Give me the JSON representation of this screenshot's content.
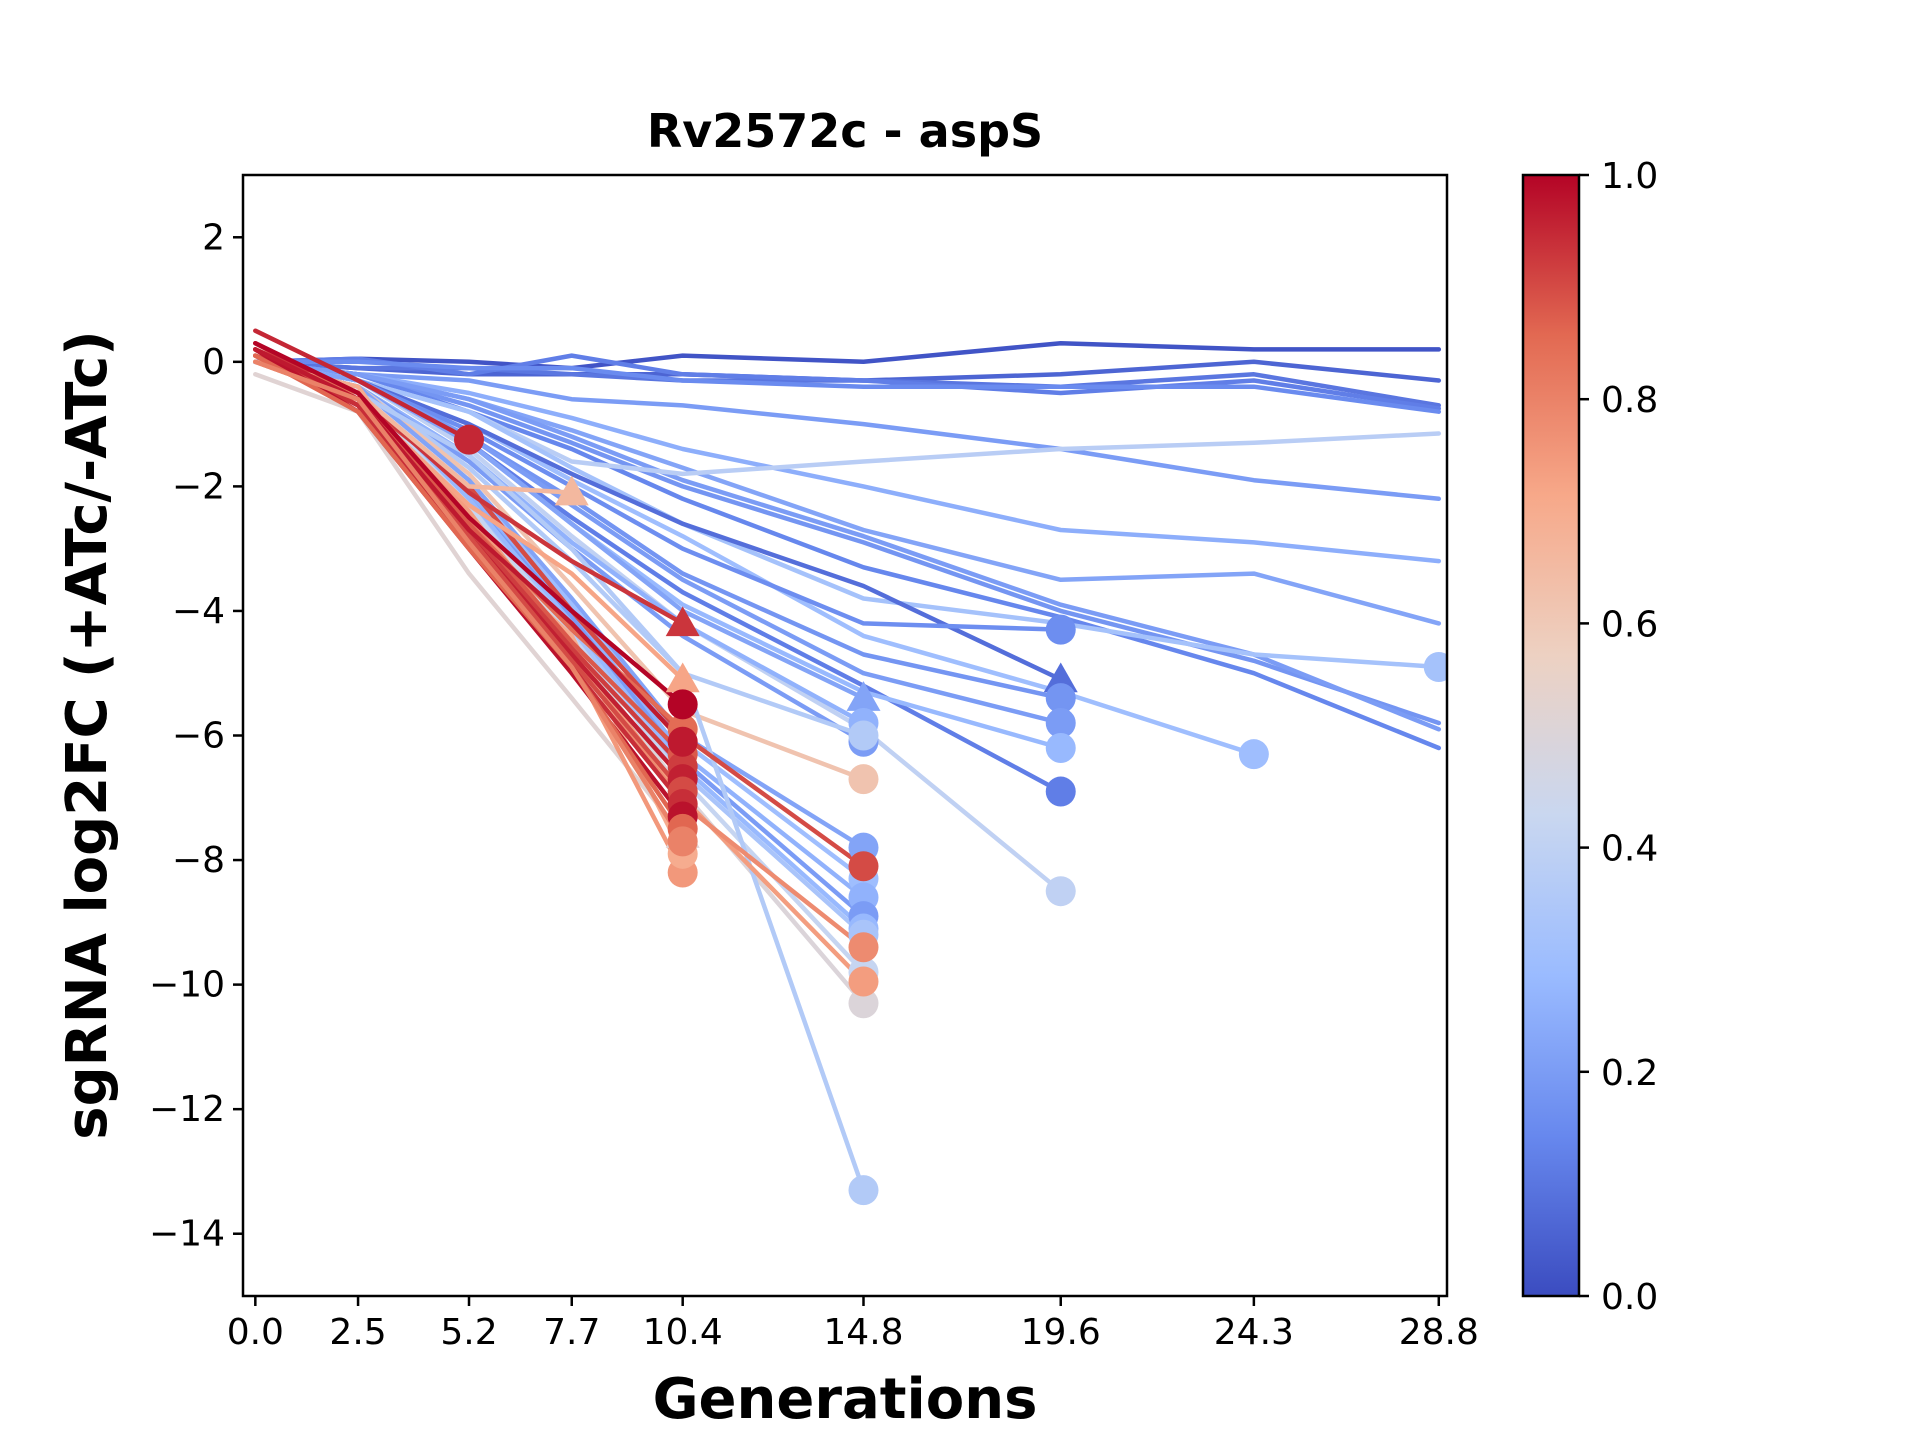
{
  "chart_data": {
    "type": "line",
    "title": "Rv2572c - aspS",
    "xlabel": "Generations",
    "ylabel": "sgRNA log2FC (+ATc/-ATc)",
    "x_ticks": [
      "0.0",
      "2.5",
      "5.2",
      "7.7",
      "10.4",
      "14.8",
      "19.6",
      "24.3",
      "28.8"
    ],
    "y_ticks": [
      "2",
      "0",
      "−2",
      "−4",
      "−6",
      "−8",
      "−10",
      "−12",
      "−14"
    ],
    "xlim": [
      -0.3,
      29.0
    ],
    "ylim": [
      -15,
      3
    ],
    "grid": false,
    "legend": "none",
    "colorbar": {
      "colormap": "coolwarm",
      "ticks": [
        "0.0",
        "0.2",
        "0.4",
        "0.6",
        "0.8",
        "1.0"
      ],
      "range": [
        0,
        1
      ],
      "colors": [
        "#3b4cc0",
        "#6788ee",
        "#9abbff",
        "#c9d7f0",
        "#edd1c2",
        "#f7a889",
        "#e26952",
        "#b40426"
      ]
    },
    "series": [
      {
        "c": 0.02,
        "x": [
          0,
          2.5,
          5.2,
          7.7,
          10.4,
          14.8,
          19.6,
          24.3,
          28.8
        ],
        "y": [
          0.0,
          0.05,
          0.0,
          -0.1,
          0.1,
          0.0,
          0.3,
          0.2,
          0.2
        ],
        "marker": "none"
      },
      {
        "c": 0.06,
        "x": [
          0,
          2.5,
          5.2,
          7.7,
          10.4,
          14.8,
          19.6,
          24.3,
          28.8
        ],
        "y": [
          0.0,
          -0.1,
          -0.2,
          -0.2,
          -0.2,
          -0.3,
          -0.2,
          0.0,
          -0.3
        ],
        "marker": "none"
      },
      {
        "c": 0.1,
        "x": [
          0,
          2.5,
          5.2,
          7.7,
          10.4,
          14.8,
          19.6,
          24.3,
          28.8
        ],
        "y": [
          0.0,
          -0.1,
          -0.1,
          -0.2,
          -0.3,
          -0.3,
          -0.4,
          -0.2,
          -0.7
        ],
        "marker": "none"
      },
      {
        "c": 0.12,
        "x": [
          0,
          2.5,
          5.2,
          7.7,
          10.4,
          14.8,
          19.6,
          24.3,
          28.8
        ],
        "y": [
          0.0,
          0.05,
          -0.2,
          0.1,
          -0.2,
          -0.3,
          -0.5,
          -0.3,
          -0.75
        ],
        "marker": "none"
      },
      {
        "c": 0.15,
        "x": [
          0,
          2.5,
          5.2,
          7.7,
          10.4,
          14.8,
          19.6,
          24.3,
          28.8
        ],
        "y": [
          0.0,
          0.0,
          -0.1,
          -0.1,
          -0.3,
          -0.4,
          -0.4,
          -0.4,
          -0.8
        ],
        "marker": "none"
      },
      {
        "c": 0.2,
        "x": [
          0,
          2.5,
          5.2,
          7.7,
          10.4,
          14.8,
          19.6,
          24.3,
          28.8
        ],
        "y": [
          0.0,
          -0.2,
          -0.3,
          -0.6,
          -0.7,
          -1.0,
          -1.4,
          -1.9,
          -2.2
        ],
        "marker": "none"
      },
      {
        "c": 0.25,
        "x": [
          0,
          2.5,
          5.2,
          7.7,
          10.4,
          14.8,
          19.6,
          24.3,
          28.8
        ],
        "y": [
          0.0,
          -0.2,
          -0.5,
          -0.9,
          -1.4,
          -2.0,
          -2.7,
          -2.9,
          -3.2
        ],
        "marker": "none"
      },
      {
        "c": 0.22,
        "x": [
          0,
          2.5,
          5.2,
          7.7,
          10.4,
          14.8,
          19.6,
          24.3,
          28.8
        ],
        "y": [
          0.0,
          -0.2,
          -0.6,
          -1.1,
          -1.7,
          -2.7,
          -3.5,
          -3.4,
          -4.2
        ],
        "marker": "none"
      },
      {
        "c": 0.18,
        "x": [
          0,
          2.5,
          5.2,
          7.7,
          10.4,
          14.8,
          19.6,
          24.3,
          28.8
        ],
        "y": [
          0.0,
          -0.2,
          -0.7,
          -1.3,
          -2.0,
          -2.9,
          -4.0,
          -4.8,
          -5.8
        ],
        "marker": "none"
      },
      {
        "c": 0.14,
        "x": [
          0,
          2.5,
          5.2,
          7.7,
          10.4,
          14.8,
          19.6,
          24.3,
          28.8
        ],
        "y": [
          0.0,
          -0.2,
          -0.8,
          -1.4,
          -2.2,
          -3.3,
          -4.1,
          -5.0,
          -6.2
        ],
        "marker": "none"
      },
      {
        "c": 0.2,
        "x": [
          0,
          2.5,
          5.2,
          7.7,
          10.4,
          14.8,
          19.6,
          24.3,
          28.8
        ],
        "y": [
          0.0,
          -0.2,
          -0.6,
          -1.2,
          -1.9,
          -2.8,
          -3.9,
          -4.7,
          -5.9
        ],
        "marker": "none"
      },
      {
        "c": 0.38,
        "x": [
          0,
          2.5,
          5.2,
          7.7,
          10.4,
          14.8,
          19.6,
          24.3,
          28.8
        ],
        "y": [
          0.0,
          -0.3,
          -0.8,
          -1.6,
          -1.8,
          -1.6,
          -1.4,
          -1.3,
          -1.15
        ],
        "marker": "none"
      },
      {
        "c": 0.32,
        "x": [
          0,
          2.5,
          5.2,
          7.7,
          10.4,
          14.8,
          19.6,
          24.3,
          28.8
        ],
        "y": [
          0.0,
          -0.3,
          -0.8,
          -1.7,
          -2.6,
          -3.8,
          -4.2,
          -4.7,
          -4.9
        ],
        "marker": "circle"
      },
      {
        "c": 0.3,
        "x": [
          0,
          2.5,
          5.2,
          7.7,
          10.4,
          14.8,
          19.6,
          24.3
        ],
        "y": [
          0.0,
          -0.3,
          -1.0,
          -1.9,
          -2.8,
          -4.4,
          -5.3,
          -6.3
        ],
        "marker": "circle"
      },
      {
        "c": 0.08,
        "x": [
          0,
          2.5,
          5.2,
          7.7,
          10.4,
          14.8,
          19.6
        ],
        "y": [
          0.0,
          -0.3,
          -1.0,
          -1.8,
          -2.6,
          -3.6,
          -5.1
        ],
        "marker": "triangle"
      },
      {
        "c": 0.16,
        "x": [
          0,
          2.5,
          5.2,
          7.7,
          10.4,
          14.8,
          19.6
        ],
        "y": [
          0.0,
          -0.3,
          -1.1,
          -2.0,
          -3.0,
          -4.2,
          -4.3
        ],
        "marker": "circle"
      },
      {
        "c": 0.18,
        "x": [
          0,
          2.5,
          5.2,
          7.7,
          10.4,
          14.8,
          19.6
        ],
        "y": [
          0.0,
          -0.3,
          -1.2,
          -2.2,
          -3.4,
          -4.7,
          -5.4
        ],
        "marker": "circle"
      },
      {
        "c": 0.2,
        "x": [
          0,
          2.5,
          5.2,
          7.7,
          10.4,
          14.8,
          19.6
        ],
        "y": [
          0.0,
          -0.3,
          -1.2,
          -2.3,
          -3.5,
          -5.0,
          -5.8
        ],
        "marker": "circle"
      },
      {
        "c": 0.12,
        "x": [
          0,
          2.5,
          5.2,
          7.7,
          10.4,
          14.8,
          19.6
        ],
        "y": [
          0.0,
          -0.3,
          -1.3,
          -2.5,
          -3.7,
          -5.2,
          -6.9
        ],
        "marker": "circle"
      },
      {
        "c": 0.28,
        "x": [
          0,
          2.5,
          5.2,
          7.7,
          10.4,
          14.8,
          19.6
        ],
        "y": [
          0.0,
          -0.3,
          -1.3,
          -2.6,
          -3.9,
          -5.3,
          -6.2
        ],
        "marker": "circle"
      },
      {
        "c": 0.4,
        "x": [
          0,
          2.5,
          5.2,
          7.7,
          10.4,
          14.8,
          19.6
        ],
        "y": [
          0.0,
          -0.3,
          -1.4,
          -2.8,
          -4.2,
          -5.9,
          -8.5
        ],
        "marker": "circle"
      },
      {
        "c": 0.22,
        "x": [
          0,
          2.5,
          5.2,
          7.7,
          10.4,
          14.8
        ],
        "y": [
          0.0,
          -0.3,
          -1.3,
          -2.6,
          -4.0,
          -5.4
        ],
        "marker": "triangle"
      },
      {
        "c": 0.26,
        "x": [
          0,
          2.5,
          5.2,
          7.7,
          10.4,
          14.8
        ],
        "y": [
          0.0,
          -0.4,
          -1.5,
          -2.9,
          -4.2,
          -5.8
        ],
        "marker": "circle"
      },
      {
        "c": 0.2,
        "x": [
          0,
          2.5,
          5.2,
          7.7,
          10.4,
          14.8
        ],
        "y": [
          0.0,
          -0.4,
          -1.6,
          -3.0,
          -4.4,
          -6.1
        ],
        "marker": "circle"
      },
      {
        "c": 0.36,
        "x": [
          0,
          2.5,
          5.2,
          7.7,
          10.4,
          14.8
        ],
        "y": [
          0.0,
          -0.4,
          -1.7,
          -3.2,
          -5.0,
          -6.0
        ],
        "marker": "circle"
      },
      {
        "c": 0.62,
        "x": [
          0,
          2.5,
          5.2,
          7.7,
          10.4,
          14.8
        ],
        "y": [
          0.0,
          -0.4,
          -1.8,
          -3.6,
          -5.6,
          -6.7
        ],
        "marker": "circle"
      },
      {
        "c": 0.22,
        "x": [
          0,
          2.5,
          5.2,
          7.7,
          10.4,
          14.8
        ],
        "y": [
          0.0,
          -0.4,
          -1.9,
          -3.8,
          -6.0,
          -7.8
        ],
        "marker": "circle"
      },
      {
        "c": 0.3,
        "x": [
          0,
          2.5,
          5.2,
          7.7,
          10.4,
          14.8
        ],
        "y": [
          0.0,
          -0.5,
          -2.0,
          -3.9,
          -6.1,
          -8.3
        ],
        "marker": "circle"
      },
      {
        "c": 0.26,
        "x": [
          0,
          2.5,
          5.2,
          7.7,
          10.4,
          14.8
        ],
        "y": [
          0.0,
          -0.5,
          -2.1,
          -4.0,
          -6.3,
          -8.6
        ],
        "marker": "circle"
      },
      {
        "c": 0.2,
        "x": [
          0,
          2.5,
          5.2,
          7.7,
          10.4,
          14.8
        ],
        "y": [
          0.0,
          -0.5,
          -2.2,
          -4.1,
          -6.4,
          -8.9
        ],
        "marker": "circle"
      },
      {
        "c": 0.28,
        "x": [
          0,
          2.5,
          5.2,
          7.7,
          10.4,
          14.8
        ],
        "y": [
          0.0,
          -0.5,
          -2.2,
          -4.2,
          -6.5,
          -9.1
        ],
        "marker": "circle"
      },
      {
        "c": 0.33,
        "x": [
          0,
          2.5,
          5.2,
          7.7,
          10.4,
          14.8
        ],
        "y": [
          0.0,
          -0.5,
          -2.3,
          -4.3,
          -6.6,
          -9.2
        ],
        "marker": "circle"
      },
      {
        "c": 0.42,
        "x": [
          0,
          2.5,
          5.2,
          7.7,
          10.4,
          14.8
        ],
        "y": [
          0.0,
          -0.5,
          -2.3,
          -4.4,
          -6.7,
          -9.8
        ],
        "marker": "circle"
      },
      {
        "c": 0.5,
        "x": [
          0,
          2.5,
          5.2,
          7.7,
          10.4,
          14.8
        ],
        "y": [
          0.0,
          -0.6,
          -2.4,
          -4.5,
          -6.9,
          -10.3
        ],
        "marker": "circle"
      },
      {
        "c": 0.36,
        "x": [
          0,
          2.5,
          5.2,
          7.7,
          10.4,
          14.8
        ],
        "y": [
          0.0,
          -0.5,
          -1.5,
          -3.0,
          -5.0,
          -13.3
        ],
        "marker": "circle"
      },
      {
        "c": 0.74,
        "x": [
          0,
          2.5,
          5.2,
          7.7,
          10.4,
          14.8
        ],
        "y": [
          0.0,
          -0.6,
          -2.4,
          -4.6,
          -7.0,
          -9.95
        ],
        "marker": "circle"
      },
      {
        "c": 0.78,
        "x": [
          0,
          2.5,
          5.2,
          7.7,
          10.4,
          14.8
        ],
        "y": [
          0.0,
          -0.6,
          -2.5,
          -4.7,
          -7.1,
          -9.4
        ],
        "marker": "circle"
      },
      {
        "c": 0.9,
        "x": [
          0,
          2.5,
          5.2,
          7.7,
          10.4,
          14.8
        ],
        "y": [
          0.3,
          -0.6,
          -2.0,
          -4.0,
          -6.0,
          -8.1
        ],
        "marker": "circle"
      },
      {
        "c": 0.95,
        "x": [
          0,
          2.5,
          5.2
        ],
        "y": [
          0.5,
          -0.3,
          -1.25
        ],
        "marker": "circle"
      },
      {
        "c": 0.93,
        "x": [
          0,
          2.5,
          5.2,
          7.7,
          10.4
        ],
        "y": [
          0.2,
          -0.5,
          -2.1,
          -3.2,
          -4.2
        ],
        "marker": "triangle"
      },
      {
        "c": 0.66,
        "x": [
          0,
          2.5,
          5.2,
          7.7
        ],
        "y": [
          0.0,
          -0.5,
          -2.0,
          -2.1
        ],
        "marker": "triangle"
      },
      {
        "c": 0.72,
        "x": [
          0,
          2.5,
          5.2,
          7.7,
          10.4
        ],
        "y": [
          0.1,
          -0.6,
          -2.3,
          -3.4,
          -5.1
        ],
        "marker": "triangle"
      },
      {
        "c": 0.52,
        "x": [
          0,
          2.5,
          5.2,
          7.7,
          10.4
        ],
        "y": [
          -0.2,
          -0.8,
          -3.4,
          -5.4,
          -7.6
        ],
        "marker": "triangle"
      },
      {
        "c": 0.75,
        "x": [
          0,
          2.5,
          5.2,
          7.7,
          10.4
        ],
        "y": [
          0.0,
          -0.6,
          -2.7,
          -4.8,
          -8.2
        ],
        "marker": "circle"
      },
      {
        "c": 0.7,
        "x": [
          0,
          2.5,
          5.2,
          7.7,
          10.4
        ],
        "y": [
          0.0,
          -0.4,
          -2.9,
          -4.4,
          -7.9
        ],
        "marker": "circle"
      },
      {
        "c": 0.85,
        "x": [
          0,
          2.5,
          5.2,
          7.7,
          10.4
        ],
        "y": [
          0.1,
          -0.5,
          -2.6,
          -4.3,
          -5.9
        ],
        "marker": "circle"
      },
      {
        "c": 0.88,
        "x": [
          0,
          2.5,
          5.2,
          7.7,
          10.4
        ],
        "y": [
          0.1,
          -0.6,
          -2.6,
          -4.5,
          -6.3
        ],
        "marker": "circle"
      },
      {
        "c": 0.92,
        "x": [
          0,
          2.5,
          5.2,
          7.7,
          10.4
        ],
        "y": [
          0.2,
          -0.6,
          -2.7,
          -4.6,
          -6.5
        ],
        "marker": "circle"
      },
      {
        "c": 0.96,
        "x": [
          0,
          2.5,
          5.2,
          7.7,
          10.4
        ],
        "y": [
          0.2,
          -0.7,
          -2.8,
          -4.7,
          -6.7
        ],
        "marker": "circle"
      },
      {
        "c": 0.9,
        "x": [
          0,
          2.5,
          5.2,
          7.7,
          10.4
        ],
        "y": [
          0.2,
          -0.7,
          -2.8,
          -4.8,
          -6.9
        ],
        "marker": "circle"
      },
      {
        "c": 0.94,
        "x": [
          0,
          2.5,
          5.2,
          7.7,
          10.4
        ],
        "y": [
          0.1,
          -0.7,
          -2.9,
          -4.9,
          -7.1
        ],
        "marker": "circle"
      },
      {
        "c": 0.98,
        "x": [
          0,
          2.5,
          5.2,
          7.7,
          10.4
        ],
        "y": [
          0.2,
          -0.8,
          -3.0,
          -5.0,
          -7.3
        ],
        "marker": "circle"
      },
      {
        "c": 0.86,
        "x": [
          0,
          2.5,
          5.2,
          7.7,
          10.4
        ],
        "y": [
          0.1,
          -0.8,
          -3.0,
          -4.9,
          -7.5
        ],
        "marker": "circle"
      },
      {
        "c": 1.0,
        "x": [
          0,
          2.5,
          5.2,
          7.7,
          10.4
        ],
        "y": [
          0.3,
          -0.5,
          -2.5,
          -4.0,
          -5.5
        ],
        "marker": "circle"
      },
      {
        "c": 0.97,
        "x": [
          0,
          2.5,
          5.2,
          7.7,
          10.4
        ],
        "y": [
          0.2,
          -0.6,
          -2.7,
          -4.2,
          -6.1
        ],
        "marker": "circle"
      },
      {
        "c": 0.8,
        "x": [
          0,
          2.5,
          5.2,
          7.7,
          10.4
        ],
        "y": [
          0.0,
          -0.6,
          -2.9,
          -4.9,
          -7.7
        ],
        "marker": "circle"
      }
    ]
  }
}
